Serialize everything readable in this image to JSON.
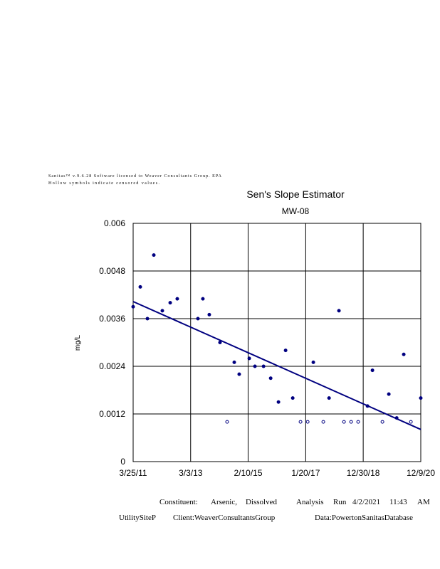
{
  "header": [
    "Sanitas™ v.9.6.28 Software licensed to Weaver Consultants Group. EPA",
    "Hollow symbols indicate censored values."
  ],
  "chart_data": {
    "type": "scatter",
    "title": "Sen's Slope Estimator",
    "subtitle": "MW-08",
    "ylabel": "mg/L",
    "xlim": [
      "2011-03-25",
      "2020-12-09"
    ],
    "xticks": [
      {
        "value": "2011-03-25",
        "label": "3/25/11"
      },
      {
        "value": "2013-03-03",
        "label": "3/3/13"
      },
      {
        "value": "2015-02-10",
        "label": "2/10/15"
      },
      {
        "value": "2017-01-20",
        "label": "1/20/17"
      },
      {
        "value": "2018-12-30",
        "label": "12/30/18"
      },
      {
        "value": "2020-12-09",
        "label": "12/9/20"
      }
    ],
    "ylim": [
      0,
      0.006
    ],
    "yticks": [
      0,
      0.0012,
      0.0024,
      0.0036,
      0.0048,
      0.006
    ],
    "grid": true,
    "series": [
      {
        "color": "#000080",
        "hollow": false,
        "x": [
          "2011-03-25",
          "2011-06-21",
          "2011-09-17",
          "2011-12-05",
          "2012-03-19",
          "2012-06-24",
          "2012-09-19",
          "2013-06-01",
          "2013-08-01",
          "2013-10-19",
          "2014-02-28",
          "2014-08-23",
          "2014-10-23",
          "2015-02-24",
          "2015-05-05",
          "2015-08-19",
          "2015-11-15",
          "2016-02-19",
          "2016-05-17",
          "2016-08-13",
          "2017-04-24",
          "2017-11-04",
          "2018-03-06",
          "2019-02-21",
          "2019-04-23",
          "2019-11-11",
          "2020-02-16",
          "2020-05-13",
          "2020-12-09"
        ],
        "values": [
          0.0039,
          0.0044,
          0.0036,
          0.0052,
          0.0038,
          0.004,
          0.0041,
          0.0036,
          0.0041,
          0.0037,
          0.003,
          0.0025,
          0.0022,
          0.0026,
          0.0024,
          0.0024,
          0.0021,
          0.0015,
          0.0028,
          0.0016,
          0.0025,
          0.0016,
          0.0038,
          0.0014,
          0.0023,
          0.0017,
          0.0011,
          0.0027,
          0.0016
        ]
      },
      {
        "color": "#000080",
        "hollow": true,
        "x": [
          "2014-05-27",
          "2016-11-17",
          "2017-02-13",
          "2017-08-25",
          "2018-05-07",
          "2018-08-03",
          "2018-10-29",
          "2019-08-24",
          "2020-08-09"
        ],
        "values": [
          0.001,
          0.001,
          0.001,
          0.001,
          0.001,
          0.001,
          0.001,
          0.001,
          0.001
        ]
      }
    ],
    "trend_line": {
      "color": "#000080",
      "x": [
        "2011-03-25",
        "2020-12-09"
      ],
      "values": [
        0.00403,
        0.00081
      ]
    }
  },
  "footer": [
    [
      "Constituent:",
      "Arsenic,",
      "Dissolved",
      "Analysis",
      "Run",
      "4/2/2021",
      "11:43",
      "AM"
    ],
    [
      "UtilitySiteP",
      "Client:WeaverConsultantsGroup",
      "Data:PowertonSanitasDatabase"
    ]
  ]
}
